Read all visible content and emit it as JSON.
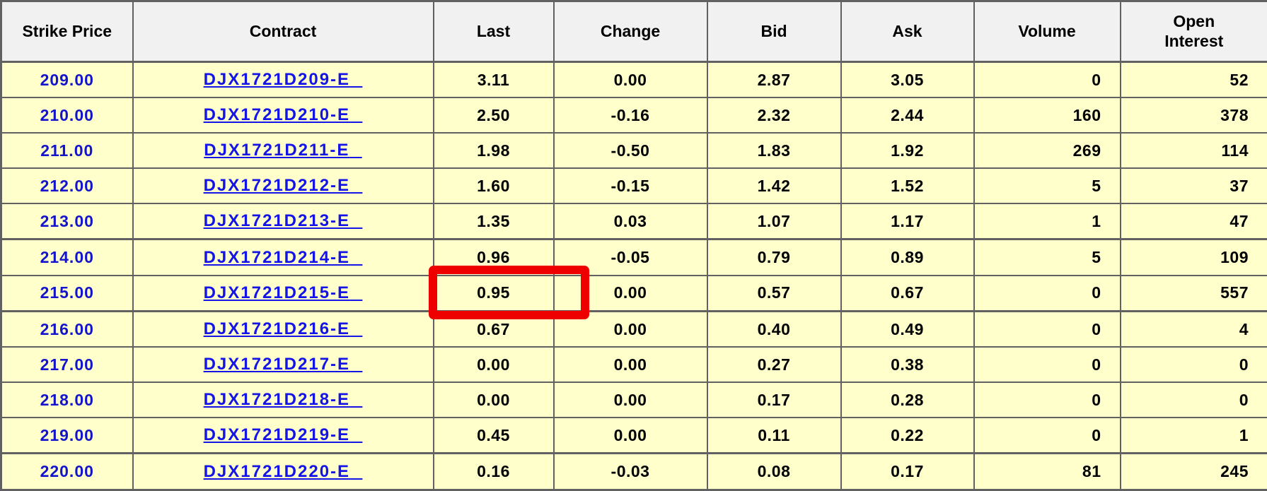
{
  "table": {
    "type": "table",
    "columns": [
      {
        "key": "strike",
        "label": "Strike Price"
      },
      {
        "key": "contract",
        "label": "Contract"
      },
      {
        "key": "last",
        "label": "Last"
      },
      {
        "key": "change",
        "label": "Change"
      },
      {
        "key": "bid",
        "label": "Bid"
      },
      {
        "key": "ask",
        "label": "Ask"
      },
      {
        "key": "volume",
        "label": "Volume"
      },
      {
        "key": "open_interest",
        "label": "Open Interest"
      }
    ],
    "rows": [
      {
        "strike": "209.00",
        "contract": "DJX1721D209-E",
        "last": "3.11",
        "change": "0.00",
        "bid": "2.87",
        "ask": "3.05",
        "volume": "0",
        "open_interest": "52"
      },
      {
        "strike": "210.00",
        "contract": "DJX1721D210-E",
        "last": "2.50",
        "change": "-0.16",
        "bid": "2.32",
        "ask": "2.44",
        "volume": "160",
        "open_interest": "378"
      },
      {
        "strike": "211.00",
        "contract": "DJX1721D211-E",
        "last": "1.98",
        "change": "-0.50",
        "bid": "1.83",
        "ask": "1.92",
        "volume": "269",
        "open_interest": "114"
      },
      {
        "strike": "212.00",
        "contract": "DJX1721D212-E",
        "last": "1.60",
        "change": "-0.15",
        "bid": "1.42",
        "ask": "1.52",
        "volume": "5",
        "open_interest": "37"
      },
      {
        "strike": "213.00",
        "contract": "DJX1721D213-E",
        "last": "1.35",
        "change": "0.03",
        "bid": "1.07",
        "ask": "1.17",
        "volume": "1",
        "open_interest": "47"
      },
      {
        "strike": "214.00",
        "contract": "DJX1721D214-E",
        "last": "0.96",
        "change": "-0.05",
        "bid": "0.79",
        "ask": "0.89",
        "volume": "5",
        "open_interest": "109"
      },
      {
        "strike": "215.00",
        "contract": "DJX1721D215-E",
        "last": "0.95",
        "change": "0.00",
        "bid": "0.57",
        "ask": "0.67",
        "volume": "0",
        "open_interest": "557"
      },
      {
        "strike": "216.00",
        "contract": "DJX1721D216-E",
        "last": "0.67",
        "change": "0.00",
        "bid": "0.40",
        "ask": "0.49",
        "volume": "0",
        "open_interest": "4"
      },
      {
        "strike": "217.00",
        "contract": "DJX1721D217-E",
        "last": "0.00",
        "change": "0.00",
        "bid": "0.27",
        "ask": "0.38",
        "volume": "0",
        "open_interest": "0"
      },
      {
        "strike": "218.00",
        "contract": "DJX1721D218-E",
        "last": "0.00",
        "change": "0.00",
        "bid": "0.17",
        "ask": "0.28",
        "volume": "0",
        "open_interest": "0"
      },
      {
        "strike": "219.00",
        "contract": "DJX1721D219-E",
        "last": "0.45",
        "change": "0.00",
        "bid": "0.11",
        "ask": "0.22",
        "volume": "0",
        "open_interest": "1"
      },
      {
        "strike": "220.00",
        "contract": "DJX1721D220-E",
        "last": "0.16",
        "change": "-0.03",
        "bid": "0.08",
        "ask": "0.17",
        "volume": "81",
        "open_interest": "245"
      }
    ],
    "colors": {
      "header_background": "#f1f1f1",
      "row_background": "#ffffcc",
      "grid_border": "#616161",
      "strike_text": "#1414cc",
      "link_text": "#1414e6",
      "value_text": "#000000"
    }
  },
  "annotation": {
    "type": "highlight-box",
    "target_row_strike": "215.00",
    "target_column": "last",
    "target_value": "0.95",
    "color": "#ee0000"
  }
}
